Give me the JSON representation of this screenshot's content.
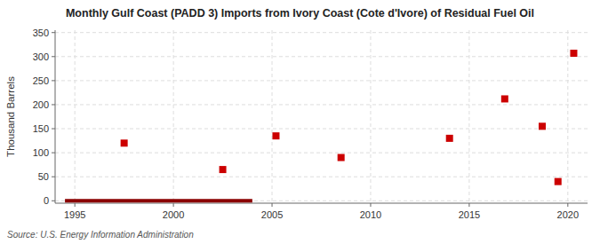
{
  "chart_data": {
    "type": "scatter",
    "title": "Monthly Gulf Coast (PADD 3) Imports from Ivory Coast (Cote d'Ivore) of Residual Fuel Oil",
    "y_label": "Thousand Barrels",
    "source": "Source: U.S. Energy Information Administration",
    "xlim": [
      1994,
      2021
    ],
    "ylim": [
      -5,
      355
    ],
    "xticks": [
      1995,
      2000,
      2005,
      2010,
      2015,
      2020
    ],
    "yticks": [
      0,
      50,
      100,
      150,
      200,
      250,
      300,
      350
    ],
    "grid": true,
    "series": [
      {
        "type": "line",
        "color": "#8b0000",
        "x": [
          1994.5,
          2004.0
        ],
        "values": [
          0,
          0
        ]
      },
      {
        "type": "scatter",
        "color": "#cc0000",
        "marker": "square",
        "x": [
          1997.5,
          2002.5,
          2005.2,
          2008.5,
          2014.0,
          2016.8,
          2018.7,
          2019.5,
          2020.3
        ],
        "values": [
          120,
          65,
          135,
          90,
          130,
          212,
          155,
          40,
          307
        ]
      }
    ]
  }
}
